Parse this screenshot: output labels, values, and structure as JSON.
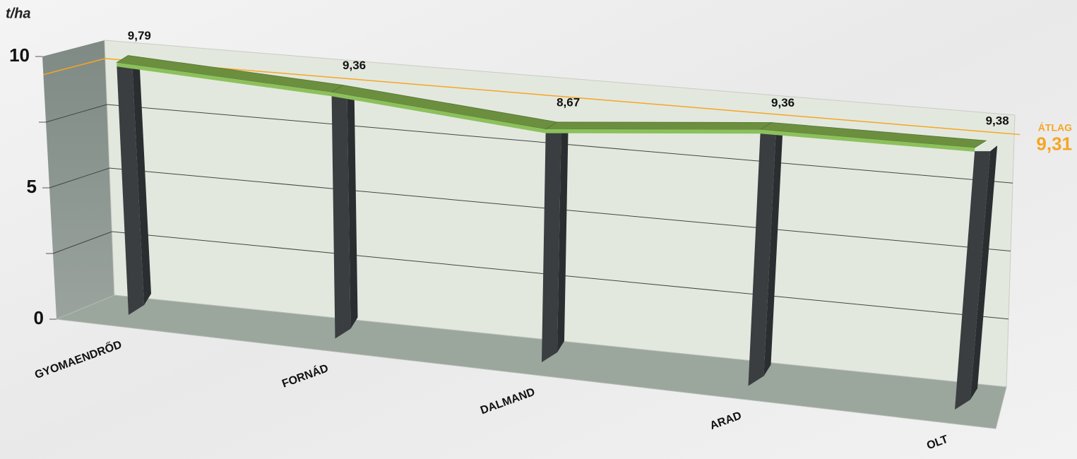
{
  "chart_data": {
    "type": "line3d",
    "y_label": "t/ha",
    "categories": [
      "GYOMAENDRŐD",
      "FORNÁD",
      "DALMAND",
      "ARAD",
      "OLT"
    ],
    "values": [
      9.79,
      9.36,
      8.67,
      9.36,
      9.38
    ],
    "value_labels": [
      "9,79",
      "9,36",
      "8,67",
      "9,36",
      "9,38"
    ],
    "color": "#6b8f3f",
    "ylim": [
      0,
      10
    ],
    "yticks": [
      0,
      5,
      10
    ],
    "minor_yticks": [
      2.5,
      7.5
    ],
    "grid": true,
    "average": {
      "label": "ÁTLAG",
      "value": 9.31,
      "value_label": "9,31",
      "color": "#f5a623"
    }
  }
}
